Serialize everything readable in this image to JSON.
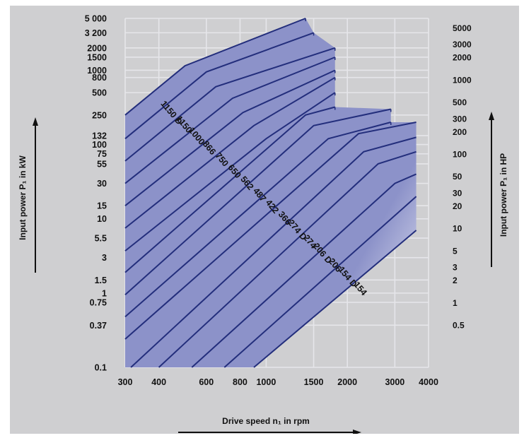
{
  "chart_data": {
    "type": "line",
    "xlabel": "Drive speed n₁ in rpm",
    "ylabel_left": "Input power P₁ in kW",
    "ylabel_right": "Input power P₁ in HP",
    "x_scale": "log",
    "y_scale": "log",
    "xlim": [
      300,
      4000
    ],
    "ylim": [
      0.1,
      5000
    ],
    "x_ticks": [
      {
        "value": 300,
        "label": "300"
      },
      {
        "value": 400,
        "label": "400"
      },
      {
        "value": 600,
        "label": "600"
      },
      {
        "value": 800,
        "label": "800"
      },
      {
        "value": 1000,
        "label": "1000"
      },
      {
        "value": 1500,
        "label": "1500"
      },
      {
        "value": 2000,
        "label": "2000"
      },
      {
        "value": 3000,
        "label": "3000"
      },
      {
        "value": 4000,
        "label": "4000"
      }
    ],
    "y_ticks_left": [
      {
        "value": 0.1,
        "label": "0.1"
      },
      {
        "value": 0.37,
        "label": "0.37"
      },
      {
        "value": 0.75,
        "label": "0.75"
      },
      {
        "value": 1,
        "label": "1"
      },
      {
        "value": 1.5,
        "label": "1.5"
      },
      {
        "value": 3,
        "label": "3"
      },
      {
        "value": 5.5,
        "label": "5.5"
      },
      {
        "value": 10,
        "label": "10"
      },
      {
        "value": 15,
        "label": "15"
      },
      {
        "value": 30,
        "label": "30"
      },
      {
        "value": 55,
        "label": "55"
      },
      {
        "value": 75,
        "label": "75"
      },
      {
        "value": 100,
        "label": "100"
      },
      {
        "value": 132,
        "label": "132"
      },
      {
        "value": 250,
        "label": "250"
      },
      {
        "value": 500,
        "label": "500"
      },
      {
        "value": 800,
        "label": "800"
      },
      {
        "value": 1000,
        "label": "1000"
      },
      {
        "value": 1500,
        "label": "1500"
      },
      {
        "value": 2000,
        "label": "2000"
      },
      {
        "value": 3200,
        "label": "3 200"
      },
      {
        "value": 5000,
        "label": "5 000"
      }
    ],
    "y_ticks_right": [
      {
        "value": 0.5,
        "label": "0.5"
      },
      {
        "value": 1,
        "label": "1"
      },
      {
        "value": 2,
        "label": "2"
      },
      {
        "value": 3,
        "label": "3"
      },
      {
        "value": 5,
        "label": "5"
      },
      {
        "value": 10,
        "label": "10"
      },
      {
        "value": 20,
        "label": "20"
      },
      {
        "value": 30,
        "label": "30"
      },
      {
        "value": 50,
        "label": "50"
      },
      {
        "value": 100,
        "label": "100"
      },
      {
        "value": 200,
        "label": "200"
      },
      {
        "value": 300,
        "label": "300"
      },
      {
        "value": 500,
        "label": "500"
      },
      {
        "value": 1000,
        "label": "1000"
      },
      {
        "value": 2000,
        "label": "2000"
      },
      {
        "value": 3000,
        "label": "3000"
      },
      {
        "value": 5000,
        "label": "5000"
      }
    ],
    "grid": true,
    "colors": {
      "fill": "#8c92c9",
      "line": "#232e7c",
      "grid": "#e6e6ea",
      "background": "#cfcfd1"
    },
    "series": [
      {
        "name": "1150 D",
        "points": [
          [
            300,
            250
          ],
          [
            500,
            1150
          ],
          [
            1400,
            5000
          ]
        ]
      },
      {
        "name": "1150",
        "points": [
          [
            300,
            120
          ],
          [
            600,
            950
          ],
          [
            1500,
            3200
          ]
        ]
      },
      {
        "name": "1000",
        "points": [
          [
            300,
            60
          ],
          [
            650,
            600
          ],
          [
            1800,
            2000
          ]
        ]
      },
      {
        "name": "866",
        "points": [
          [
            300,
            30
          ],
          [
            750,
            420
          ],
          [
            1800,
            1500
          ]
        ]
      },
      {
        "name": "750",
        "points": [
          [
            300,
            15
          ],
          [
            820,
            270
          ],
          [
            1800,
            1000
          ]
        ]
      },
      {
        "name": "650",
        "points": [
          [
            300,
            7.5
          ],
          [
            900,
            180
          ],
          [
            1800,
            800
          ]
        ]
      },
      {
        "name": "562",
        "points": [
          [
            300,
            3.7
          ],
          [
            1000,
            120
          ],
          [
            1800,
            500
          ]
        ]
      },
      {
        "name": "487",
        "points": [
          [
            300,
            1.9
          ],
          [
            1400,
            250
          ],
          [
            1800,
            320
          ]
        ]
      },
      {
        "name": "422",
        "points": [
          [
            300,
            0.95
          ],
          [
            1500,
            180
          ],
          [
            2900,
            300
          ]
        ]
      },
      {
        "name": "366",
        "points": [
          [
            300,
            0.48
          ],
          [
            1700,
            120
          ],
          [
            2900,
            200
          ]
        ]
      },
      {
        "name": "274 D",
        "points": [
          [
            300,
            0.24
          ],
          [
            2200,
            140
          ],
          [
            3600,
            200
          ]
        ]
      },
      {
        "name": "274",
        "points": [
          [
            315,
            0.1
          ],
          [
            2300,
            80
          ],
          [
            3600,
            125
          ]
        ]
      },
      {
        "name": "206 D",
        "points": [
          [
            400,
            0.1
          ],
          [
            2600,
            55
          ],
          [
            3600,
            80
          ]
        ]
      },
      {
        "name": "206",
        "points": [
          [
            530,
            0.1
          ],
          [
            3000,
            30
          ],
          [
            3600,
            40
          ]
        ]
      },
      {
        "name": "154 D",
        "points": [
          [
            700,
            0.1
          ],
          [
            3600,
            20
          ]
        ]
      },
      {
        "name": "154",
        "points": [
          [
            900,
            0.1
          ],
          [
            3600,
            7
          ]
        ]
      }
    ]
  }
}
